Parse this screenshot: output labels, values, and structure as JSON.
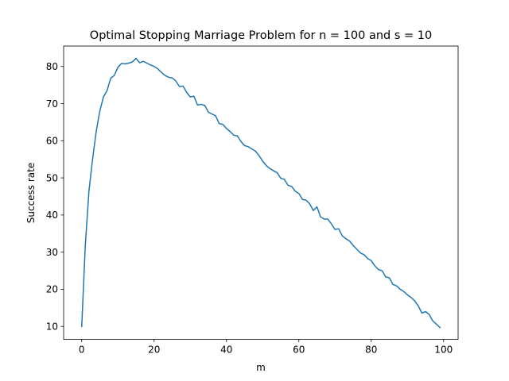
{
  "chart_data": {
    "type": "line",
    "title": "Optimal Stopping Marriage Problem for n = 100 and s = 10",
    "xlabel": "m",
    "ylabel": "Success rate",
    "xlim": [
      -5,
      104
    ],
    "ylim": [
      6.5,
      85.5
    ],
    "xticks": [
      0,
      20,
      40,
      60,
      80,
      100
    ],
    "yticks": [
      10,
      20,
      30,
      40,
      50,
      60,
      70,
      80
    ],
    "grid": false,
    "legend": "none",
    "series": [
      {
        "color": "#1f77b4",
        "x": [
          0,
          1,
          2,
          3,
          4,
          5,
          6,
          7,
          8,
          9,
          10,
          11,
          12,
          13,
          14,
          15,
          16,
          17,
          18,
          19,
          20,
          21,
          22,
          23,
          24,
          25,
          26,
          27,
          28,
          29,
          30,
          31,
          32,
          33,
          34,
          35,
          36,
          37,
          38,
          39,
          40,
          41,
          42,
          43,
          44,
          45,
          46,
          47,
          48,
          49,
          50,
          51,
          52,
          53,
          54,
          55,
          56,
          57,
          58,
          59,
          60,
          61,
          62,
          63,
          64,
          65,
          66,
          67,
          68,
          69,
          70,
          71,
          72,
          73,
          74,
          75,
          76,
          77,
          78,
          79,
          80,
          81,
          82,
          83,
          84,
          85,
          86,
          87,
          88,
          89,
          90,
          91,
          92,
          93,
          94,
          95,
          96,
          97,
          98,
          99
        ],
        "values": [
          10.0,
          32.0,
          46.5,
          55.0,
          62.5,
          68.0,
          71.8,
          73.5,
          76.8,
          77.6,
          79.8,
          80.8,
          80.7,
          80.9,
          81.2,
          82.2,
          81.0,
          81.4,
          80.9,
          80.4,
          80.0,
          79.4,
          78.4,
          77.6,
          77.1,
          76.9,
          76.1,
          74.6,
          74.7,
          73.0,
          71.8,
          72.0,
          69.6,
          69.8,
          69.5,
          67.7,
          67.2,
          66.7,
          64.6,
          64.4,
          63.3,
          62.5,
          61.5,
          61.3,
          59.8,
          58.7,
          58.4,
          57.8,
          57.2,
          56.0,
          54.5,
          53.3,
          52.5,
          51.9,
          51.4,
          49.9,
          49.6,
          48.0,
          47.7,
          46.4,
          45.8,
          44.2,
          44.0,
          43.0,
          41.2,
          42.2,
          39.5,
          38.9,
          38.9,
          37.6,
          36.1,
          36.3,
          34.4,
          33.6,
          33.0,
          31.8,
          30.8,
          29.8,
          29.3,
          28.3,
          27.7,
          26.3,
          25.3,
          25.0,
          23.3,
          23.1,
          21.3,
          20.9,
          20.0,
          19.4,
          18.5,
          17.8,
          16.9,
          15.5,
          13.6,
          14.0,
          13.2,
          11.5,
          10.6,
          9.7
        ]
      }
    ]
  }
}
